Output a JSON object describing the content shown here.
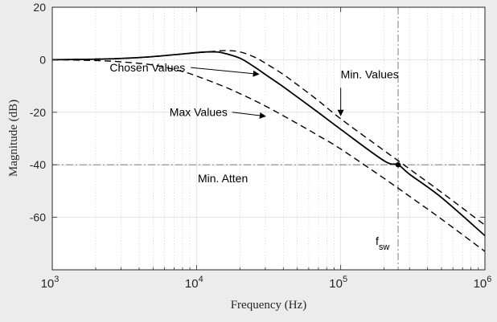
{
  "chart_data": {
    "type": "line",
    "xlabel": "Frequency (Hz)",
    "ylabel": "Magnitude (dB)",
    "x_scale": "log",
    "xlim": [
      1000,
      1000000
    ],
    "ylim": [
      -80,
      20
    ],
    "grid": true,
    "minor_grid": true,
    "x_ticks": [
      {
        "value": 1000,
        "base": "10",
        "exp": "3"
      },
      {
        "value": 10000,
        "base": "10",
        "exp": "4"
      },
      {
        "value": 100000,
        "base": "10",
        "exp": "5"
      },
      {
        "value": 1000000,
        "base": "10",
        "exp": "6"
      }
    ],
    "y_ticks": [
      {
        "value": 20,
        "label": "20"
      },
      {
        "value": 0,
        "label": "0"
      },
      {
        "value": -20,
        "label": "-20"
      },
      {
        "value": -40,
        "label": "-40"
      },
      {
        "value": -60,
        "label": "-60"
      }
    ],
    "series": [
      {
        "name": "Chosen Values",
        "style": "solid",
        "color": "#000000",
        "points": [
          [
            1000,
            0
          ],
          [
            2000,
            0.2
          ],
          [
            3000,
            0.5
          ],
          [
            5000,
            1.2
          ],
          [
            8000,
            2.2
          ],
          [
            11000,
            2.9
          ],
          [
            13000,
            3.0
          ],
          [
            15000,
            2.7
          ],
          [
            20000,
            0.6
          ],
          [
            25000,
            -2.6
          ],
          [
            30000,
            -5.6
          ],
          [
            40000,
            -10.3
          ],
          [
            50000,
            -14.2
          ],
          [
            70000,
            -20.1
          ],
          [
            100000,
            -26.5
          ],
          [
            200000,
            -38.5
          ],
          [
            250000,
            -40.0
          ],
          [
            300000,
            -43.6
          ],
          [
            500000,
            -52.5
          ],
          [
            1000000,
            -67.0
          ]
        ]
      },
      {
        "name": "Min. Values",
        "style": "dashed",
        "color": "#000000",
        "points": [
          [
            1000,
            0
          ],
          [
            3000,
            0.5
          ],
          [
            5000,
            1.2
          ],
          [
            8000,
            2.2
          ],
          [
            12000,
            3.0
          ],
          [
            16000,
            3.5
          ],
          [
            20000,
            3.0
          ],
          [
            25000,
            1.1
          ],
          [
            30000,
            -1.3
          ],
          [
            40000,
            -5.6
          ],
          [
            50000,
            -9.5
          ],
          [
            70000,
            -15.6
          ],
          [
            100000,
            -22.5
          ],
          [
            200000,
            -34.6
          ],
          [
            300000,
            -41.6
          ],
          [
            500000,
            -50.5
          ],
          [
            1000000,
            -63.0
          ]
        ]
      },
      {
        "name": "Max Values",
        "style": "dashed",
        "color": "#000000",
        "points": [
          [
            1000,
            0
          ],
          [
            2000,
            -0.3
          ],
          [
            3000,
            -0.8
          ],
          [
            5000,
            -2.0
          ],
          [
            8000,
            -4.5
          ],
          [
            10000,
            -6.2
          ],
          [
            15000,
            -9.9
          ],
          [
            20000,
            -12.9
          ],
          [
            30000,
            -17.6
          ],
          [
            50000,
            -24.3
          ],
          [
            70000,
            -28.9
          ],
          [
            100000,
            -34.0
          ],
          [
            200000,
            -45.2
          ],
          [
            300000,
            -52.0
          ],
          [
            500000,
            -60.7
          ],
          [
            1000000,
            -73.0
          ]
        ]
      }
    ],
    "reference_lines": [
      {
        "type": "horizontal",
        "value": -40,
        "style": "dash-dot",
        "label": "Min. Atten"
      },
      {
        "type": "vertical",
        "value": 250000,
        "style": "dash-dot",
        "label": "f",
        "subscript": "sw"
      }
    ],
    "marker": {
      "x": 250000,
      "y": -40
    },
    "annotations": [
      {
        "text": "Chosen Values",
        "x": 2500,
        "y": -4.5,
        "target": [
          27000,
          -5.5
        ],
        "arrow": "straight"
      },
      {
        "text": "Max Values",
        "x": 6500,
        "y": -21.5,
        "target": [
          30000,
          -21.5
        ],
        "arrow": "straight"
      },
      {
        "text": "Min. Values",
        "x": 100000,
        "y": -7,
        "target": [
          100000,
          -21.5
        ],
        "arrow": "down"
      }
    ]
  }
}
